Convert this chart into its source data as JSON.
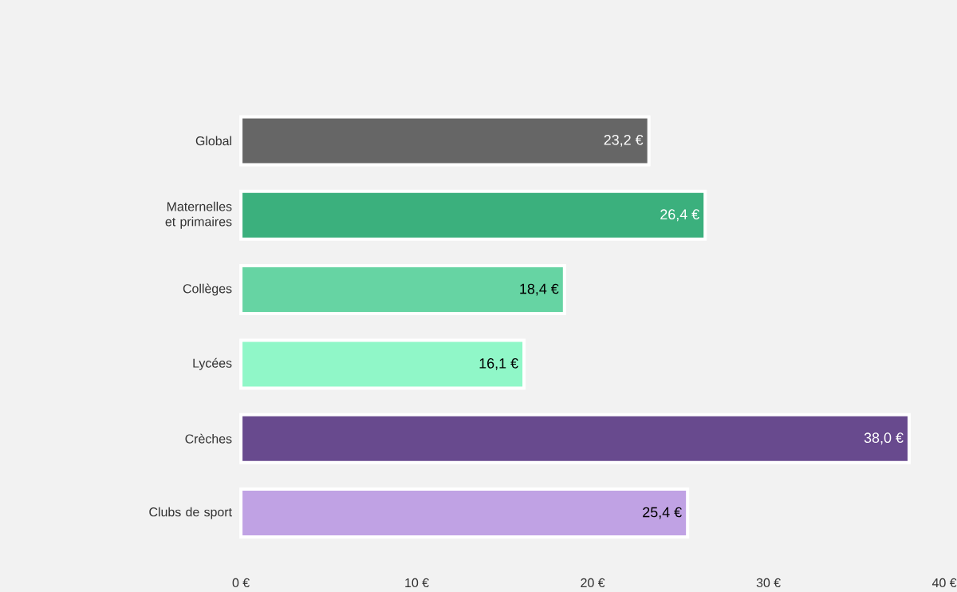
{
  "chart_data": {
    "type": "bar",
    "orientation": "horizontal",
    "categories": [
      "Global",
      "Maternelles et primaires",
      "Collèges",
      "Lycées",
      "Crèches",
      "Clubs de sport"
    ],
    "values": [
      23.2,
      26.4,
      18.4,
      16.1,
      38.0,
      25.4
    ],
    "value_labels": [
      "23,2 €",
      "26,4 €",
      "18,4 €",
      "16,1 €",
      "38,0 €",
      "25,4 €"
    ],
    "colors": [
      "#666666",
      "#3bb07d",
      "#66d4a3",
      "#90f7c8",
      "#684a8e",
      "#c0a2e4"
    ],
    "xlim": [
      0,
      40
    ],
    "xticks": [
      {
        "value": 0,
        "label": "0 €"
      },
      {
        "value": 10,
        "label": "10 €"
      },
      {
        "value": 20,
        "label": "20 €"
      },
      {
        "value": 30,
        "label": "30 €"
      },
      {
        "value": 40,
        "label": "40 €"
      }
    ]
  }
}
